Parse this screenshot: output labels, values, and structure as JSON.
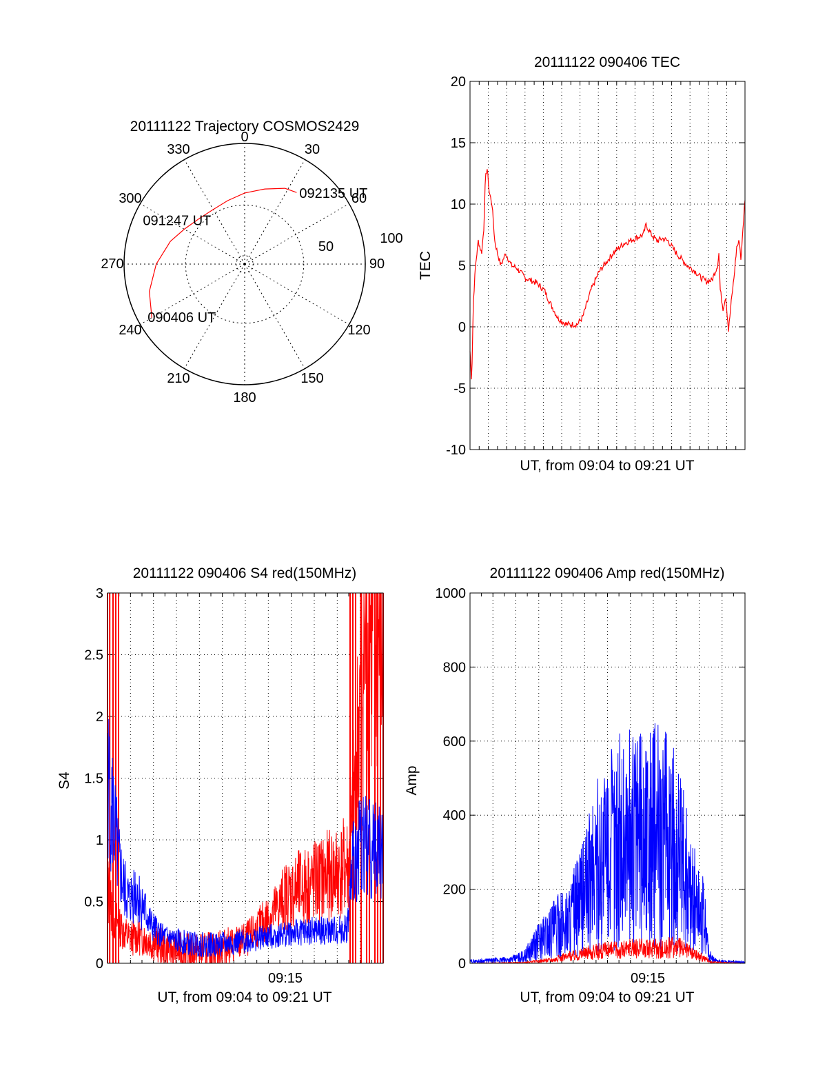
{
  "colors": {
    "primary_trace": "#ff0000",
    "secondary_trace": "#0000ff",
    "axes": "#000000",
    "grid": "#000000"
  },
  "chart_data": [
    {
      "type": "polar",
      "title": "20111122 Trajectory COSMOS2429",
      "angle_labels": [
        "0",
        "30",
        "60",
        "90",
        "120",
        "150",
        "180",
        "210",
        "240",
        "270",
        "300",
        "330"
      ],
      "radial_labels": [
        "50",
        "100"
      ],
      "grid": true,
      "trajectory": {
        "color": "#ff0000",
        "points": [
          {
            "az": 240,
            "el": 10
          },
          {
            "az": 254,
            "el": 16
          },
          {
            "az": 270,
            "el": 24
          },
          {
            "az": 287,
            "el": 32
          },
          {
            "az": 300,
            "el": 38
          },
          {
            "az": 315,
            "el": 42
          },
          {
            "az": 330,
            "el": 43
          },
          {
            "az": 345,
            "el": 41
          },
          {
            "az": 0,
            "el": 37
          },
          {
            "az": 15,
            "el": 32
          },
          {
            "az": 28,
            "el": 26
          },
          {
            "az": 36,
            "el": 24
          }
        ],
        "labels": [
          {
            "text": "092135 UT",
            "az": 36,
            "el": 24
          },
          {
            "text": "091247 UT",
            "az": 300,
            "el": 38
          },
          {
            "text": "090406 UT",
            "az": 240,
            "el": 10
          }
        ]
      }
    },
    {
      "type": "line",
      "title": "20111122 090406 TEC",
      "xlabel": "UT, from 09:04 to 09:21 UT",
      "ylabel": "TEC",
      "xlim": [
        0,
        1
      ],
      "ylim": [
        -10,
        20
      ],
      "yticks": [
        "-10",
        "-5",
        "0",
        "5",
        "10",
        "15",
        "20"
      ],
      "grid": true,
      "series": [
        {
          "color": "#ff0000",
          "points": [
            [
              0.0,
              -2
            ],
            [
              0.006,
              -4.5
            ],
            [
              0.012,
              2
            ],
            [
              0.02,
              5
            ],
            [
              0.03,
              7
            ],
            [
              0.042,
              6
            ],
            [
              0.05,
              8
            ],
            [
              0.056,
              12
            ],
            [
              0.062,
              13
            ],
            [
              0.07,
              11
            ],
            [
              0.08,
              10
            ],
            [
              0.09,
              7
            ],
            [
              0.1,
              6
            ],
            [
              0.112,
              5
            ],
            [
              0.13,
              6
            ],
            [
              0.14,
              5.5
            ],
            [
              0.15,
              5
            ],
            [
              0.17,
              4.8
            ],
            [
              0.2,
              4
            ],
            [
              0.24,
              3.6
            ],
            [
              0.27,
              3
            ],
            [
              0.29,
              2
            ],
            [
              0.32,
              0.7
            ],
            [
              0.35,
              0.2
            ],
            [
              0.39,
              0.2
            ],
            [
              0.41,
              0.8
            ],
            [
              0.44,
              3
            ],
            [
              0.47,
              4.5
            ],
            [
              0.52,
              6
            ],
            [
              0.56,
              6.8
            ],
            [
              0.6,
              7.2
            ],
            [
              0.63,
              7.5
            ],
            [
              0.64,
              8.3
            ],
            [
              0.66,
              7.5
            ],
            [
              0.68,
              7
            ],
            [
              0.7,
              7.2
            ],
            [
              0.72,
              7
            ],
            [
              0.75,
              6
            ],
            [
              0.77,
              5.5
            ],
            [
              0.79,
              5
            ],
            [
              0.82,
              4.5
            ],
            [
              0.84,
              4
            ],
            [
              0.86,
              3.7
            ],
            [
              0.88,
              3.8
            ],
            [
              0.9,
              5
            ],
            [
              0.905,
              6
            ],
            [
              0.91,
              3
            ],
            [
              0.92,
              1.5
            ],
            [
              0.93,
              2.5
            ],
            [
              0.94,
              -0.3
            ],
            [
              0.95,
              2
            ],
            [
              0.96,
              4
            ],
            [
              0.97,
              6.5
            ],
            [
              0.98,
              7
            ],
            [
              0.985,
              5.5
            ],
            [
              0.99,
              7
            ],
            [
              1.0,
              10.5
            ]
          ]
        }
      ]
    },
    {
      "type": "line",
      "title": "20111122 090406 S4 red(150MHz)",
      "xlabel": "UT, from 09:04 to 09:21 UT",
      "ylabel": "S4",
      "xtick_label": "09:15",
      "ylim": [
        0,
        3
      ],
      "yticks": [
        "0",
        "0.5",
        "1",
        "1.5",
        "2",
        "2.5",
        "3"
      ],
      "grid": true,
      "series": [
        {
          "color": "#0000ff",
          "points": [
            [
              0.0,
              1.5
            ],
            [
              0.02,
              1.2
            ],
            [
              0.04,
              0.8
            ],
            [
              0.06,
              0.6
            ],
            [
              0.08,
              0.5
            ],
            [
              0.1,
              0.6
            ],
            [
              0.12,
              0.5
            ],
            [
              0.14,
              0.4
            ],
            [
              0.16,
              0.3
            ],
            [
              0.2,
              0.22
            ],
            [
              0.25,
              0.18
            ],
            [
              0.3,
              0.16
            ],
            [
              0.35,
              0.15
            ],
            [
              0.4,
              0.15
            ],
            [
              0.45,
              0.16
            ],
            [
              0.5,
              0.18
            ],
            [
              0.55,
              0.2
            ],
            [
              0.6,
              0.22
            ],
            [
              0.65,
              0.24
            ],
            [
              0.7,
              0.25
            ],
            [
              0.75,
              0.26
            ],
            [
              0.8,
              0.26
            ],
            [
              0.85,
              0.27
            ],
            [
              0.87,
              0.28
            ],
            [
              0.89,
              0.8
            ],
            [
              0.92,
              1.0
            ],
            [
              0.95,
              0.95
            ],
            [
              1.0,
              0.9
            ]
          ]
        },
        {
          "color": "#ff0000",
          "points": [
            [
              0.0,
              0.6
            ],
            [
              0.02,
              0.4
            ],
            [
              0.04,
              0.3
            ],
            [
              0.06,
              0.25
            ],
            [
              0.08,
              0.2
            ],
            [
              0.1,
              0.22
            ],
            [
              0.14,
              0.2
            ],
            [
              0.18,
              0.15
            ],
            [
              0.22,
              0.12
            ],
            [
              0.26,
              0.1
            ],
            [
              0.3,
              0.09
            ],
            [
              0.35,
              0.1
            ],
            [
              0.4,
              0.12
            ],
            [
              0.45,
              0.15
            ],
            [
              0.5,
              0.18
            ],
            [
              0.55,
              0.3
            ],
            [
              0.6,
              0.4
            ],
            [
              0.65,
              0.55
            ],
            [
              0.7,
              0.6
            ],
            [
              0.75,
              0.65
            ],
            [
              0.8,
              0.7
            ],
            [
              0.85,
              0.75
            ],
            [
              0.88,
              0.8
            ],
            [
              0.9,
              1.5
            ],
            [
              0.93,
              2.5
            ],
            [
              0.96,
              2.8
            ],
            [
              1.0,
              2.5
            ]
          ]
        }
      ]
    },
    {
      "type": "line",
      "title": "20111122 090406 Amp red(150MHz)",
      "xlabel": "UT, from 09:04 to 09:21 UT",
      "ylabel": "Amp",
      "xtick_label": "09:15",
      "ylim": [
        0,
        1000
      ],
      "yticks": [
        "0",
        "200",
        "400",
        "600",
        "800",
        "1000"
      ],
      "grid": true,
      "series": [
        {
          "color": "#0000ff",
          "points": [
            [
              0.0,
              5
            ],
            [
              0.1,
              8
            ],
            [
              0.15,
              10
            ],
            [
              0.2,
              20
            ],
            [
              0.25,
              60
            ],
            [
              0.3,
              90
            ],
            [
              0.35,
              110
            ],
            [
              0.4,
              160
            ],
            [
              0.45,
              250
            ],
            [
              0.5,
              300
            ],
            [
              0.55,
              330
            ],
            [
              0.6,
              340
            ],
            [
              0.65,
              350
            ],
            [
              0.7,
              340
            ],
            [
              0.75,
              300
            ],
            [
              0.8,
              200
            ],
            [
              0.85,
              120
            ],
            [
              0.87,
              20
            ],
            [
              0.9,
              5
            ],
            [
              1.0,
              3
            ]
          ]
        },
        {
          "color": "#ff0000",
          "points": [
            [
              0.0,
              0
            ],
            [
              0.2,
              2
            ],
            [
              0.3,
              10
            ],
            [
              0.4,
              25
            ],
            [
              0.5,
              35
            ],
            [
              0.6,
              40
            ],
            [
              0.7,
              38
            ],
            [
              0.75,
              45
            ],
            [
              0.8,
              30
            ],
            [
              0.85,
              15
            ],
            [
              0.88,
              3
            ],
            [
              1.0,
              0
            ]
          ]
        }
      ]
    }
  ]
}
